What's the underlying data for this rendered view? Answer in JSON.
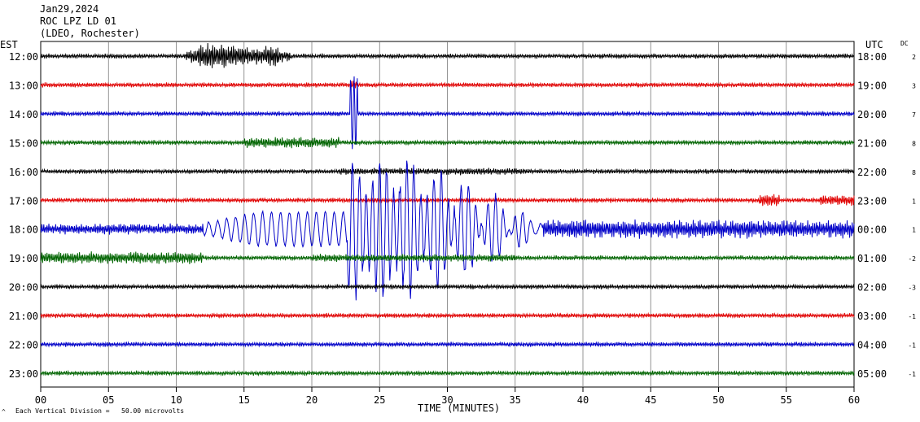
{
  "header": {
    "date": "Jan29,2024",
    "station": "ROC LPZ LD 01",
    "network": "(LDEO, Rochester)"
  },
  "left_axis_title": "EST",
  "right_axis_title": "UTC",
  "dc_title": "DC",
  "footer_note": "Each Vertical Division =   50.00 microvolts",
  "footer_mark": "^",
  "chart_data": {
    "type": "line",
    "xlabel": "TIME (MINUTES)",
    "xlim": [
      0,
      60
    ],
    "x_ticks": [
      "00",
      "05",
      "10",
      "15",
      "20",
      "25",
      "30",
      "35",
      "40",
      "45",
      "50",
      "55",
      "60"
    ],
    "trace_colors": [
      "#000000",
      "#e00000",
      "#0000c8",
      "#006400"
    ],
    "rows": [
      {
        "est": "12:00",
        "utc": "18:00",
        "dc": "2"
      },
      {
        "est": "13:00",
        "utc": "19:00",
        "dc": "3"
      },
      {
        "est": "14:00",
        "utc": "20:00",
        "dc": "7"
      },
      {
        "est": "15:00",
        "utc": "21:00",
        "dc": "8"
      },
      {
        "est": "16:00",
        "utc": "22:00",
        "dc": "8"
      },
      {
        "est": "17:00",
        "utc": "23:00",
        "dc": "1"
      },
      {
        "est": "18:00",
        "utc": "00:00",
        "dc": "1"
      },
      {
        "est": "19:00",
        "utc": "01:00",
        "dc": "-2"
      },
      {
        "est": "20:00",
        "utc": "02:00",
        "dc": "-3"
      },
      {
        "est": "21:00",
        "utc": "03:00",
        "dc": "-1"
      },
      {
        "est": "22:00",
        "utc": "04:00",
        "dc": "-1"
      },
      {
        "est": "23:00",
        "utc": "05:00",
        "dc": "-1"
      }
    ]
  }
}
